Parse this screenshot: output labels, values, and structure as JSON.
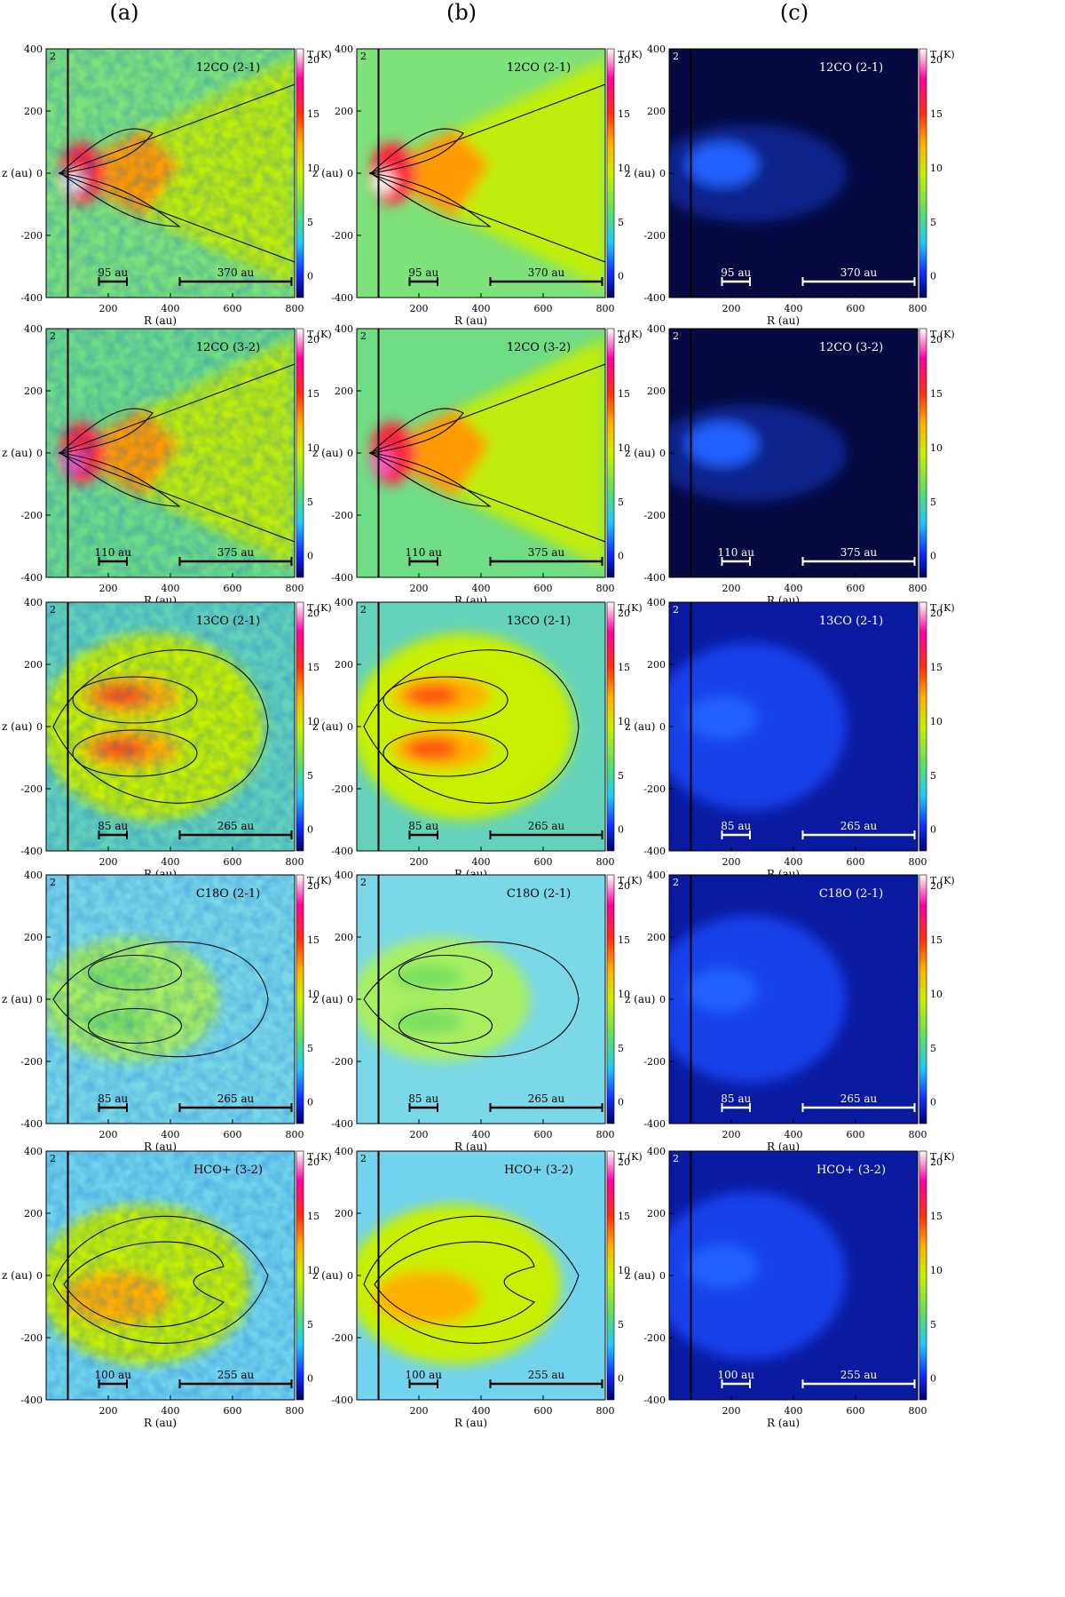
{
  "columns": [
    "(a)",
    "(b)",
    "(c)"
  ],
  "axes": {
    "ylabel": "z (au)",
    "xlabel": "R (au)",
    "cbar_label": "T (K)",
    "xticks": [
      "200",
      "400",
      "600",
      "800"
    ],
    "yticks": [
      "400",
      "200",
      "0",
      "-200",
      "-400"
    ],
    "cbar_ticks": [
      "20",
      "15",
      "10",
      "5",
      "0"
    ],
    "corner": "2"
  },
  "chart_data": [
    {
      "type": "heatmap",
      "title": "12CO (2-1)",
      "xlabel": "R (au)",
      "ylabel": "z (au)",
      "xlim": [
        0,
        800
      ],
      "ylim": [
        -400,
        400
      ],
      "cbar_range": [
        -2,
        21
      ],
      "scale_bars": [
        "95 au",
        "370 au"
      ],
      "panels": [
        "(a)",
        "(b)",
        "(c)"
      ]
    },
    {
      "type": "heatmap",
      "title": "12CO (3-2)",
      "xlabel": "R (au)",
      "ylabel": "z (au)",
      "xlim": [
        0,
        800
      ],
      "ylim": [
        -400,
        400
      ],
      "cbar_range": [
        -2,
        21
      ],
      "scale_bars": [
        "110 au",
        "375 au"
      ],
      "panels": [
        "(a)",
        "(b)",
        "(c)"
      ]
    },
    {
      "type": "heatmap",
      "title": "13CO (2-1)",
      "xlabel": "R (au)",
      "ylabel": "z (au)",
      "xlim": [
        0,
        800
      ],
      "ylim": [
        -400,
        400
      ],
      "cbar_range": [
        -2,
        21
      ],
      "scale_bars": [
        "85 au",
        "265 au"
      ],
      "panels": [
        "(a)",
        "(b)",
        "(c)"
      ]
    },
    {
      "type": "heatmap",
      "title": "C18O (2-1)",
      "xlabel": "R (au)",
      "ylabel": "z (au)",
      "xlim": [
        0,
        800
      ],
      "ylim": [
        -400,
        400
      ],
      "cbar_range": [
        -2,
        21
      ],
      "scale_bars": [
        "85 au",
        "265 au"
      ],
      "panels": [
        "(a)",
        "(b)",
        "(c)"
      ]
    },
    {
      "type": "heatmap",
      "title": "HCO+ (3-2)",
      "xlabel": "R (au)",
      "ylabel": "z (au)",
      "xlim": [
        0,
        800
      ],
      "ylim": [
        -400,
        400
      ],
      "cbar_range": [
        -2,
        21
      ],
      "scale_bars": [
        "100 au",
        "255 au"
      ],
      "panels": [
        "(a)",
        "(b)",
        "(c)"
      ]
    }
  ]
}
